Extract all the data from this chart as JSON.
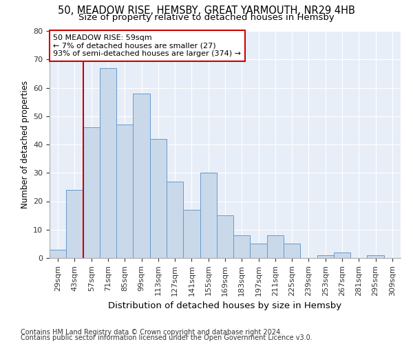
{
  "title1": "50, MEADOW RISE, HEMSBY, GREAT YARMOUTH, NR29 4HB",
  "title2": "Size of property relative to detached houses in Hemsby",
  "xlabel": "Distribution of detached houses by size in Hemsby",
  "ylabel": "Number of detached properties",
  "footer1": "Contains HM Land Registry data © Crown copyright and database right 2024.",
  "footer2": "Contains public sector information licensed under the Open Government Licence v3.0.",
  "bins": [
    "29sqm",
    "43sqm",
    "57sqm",
    "71sqm",
    "85sqm",
    "99sqm",
    "113sqm",
    "127sqm",
    "141sqm",
    "155sqm",
    "169sqm",
    "183sqm",
    "197sqm",
    "211sqm",
    "225sqm",
    "239sqm",
    "253sqm",
    "267sqm",
    "281sqm",
    "295sqm",
    "309sqm"
  ],
  "values": [
    3,
    24,
    46,
    67,
    47,
    58,
    42,
    27,
    17,
    30,
    15,
    8,
    5,
    8,
    5,
    0,
    1,
    2,
    0,
    1,
    0
  ],
  "bar_color": "#c9d9ea",
  "bar_edge_color": "#6699cc",
  "vline_color": "#cc0000",
  "annotation_text": "50 MEADOW RISE: 59sqm\n← 7% of detached houses are smaller (27)\n93% of semi-detached houses are larger (374) →",
  "annotation_box_color": "white",
  "annotation_box_edge": "#cc0000",
  "ylim": [
    0,
    80
  ],
  "yticks": [
    0,
    10,
    20,
    30,
    40,
    50,
    60,
    70,
    80
  ],
  "bg_color": "#e8eef8",
  "title1_fontsize": 10.5,
  "title2_fontsize": 9.5,
  "xlabel_fontsize": 9.5,
  "ylabel_fontsize": 8.5,
  "tick_fontsize": 8,
  "annotation_fontsize": 8,
  "footer_fontsize": 7
}
